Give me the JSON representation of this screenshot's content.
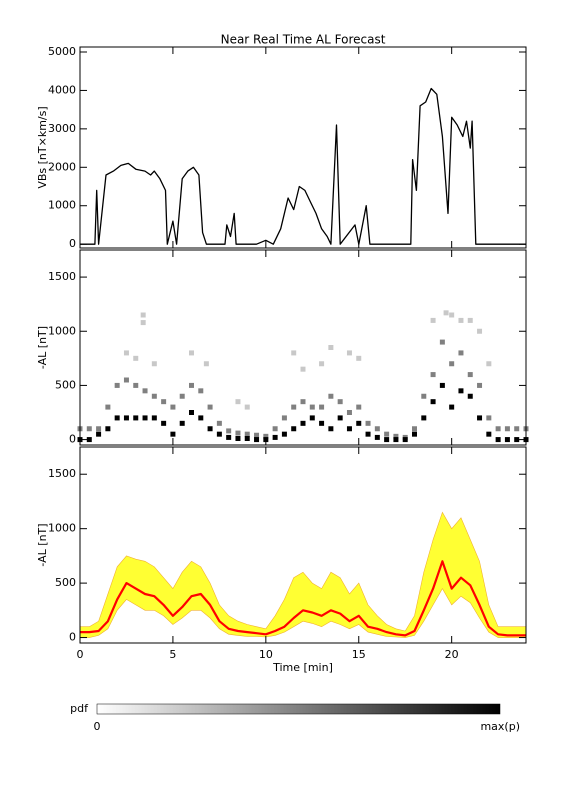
{
  "chart_data": [
    {
      "type": "line",
      "title": "Near Real Time AL Forecast",
      "ylabel": "VBs [nT×km/s]",
      "xlim": [
        0,
        24
      ],
      "xticks": [
        0,
        5,
        10,
        15,
        20
      ],
      "ylim": [
        -100,
        5130
      ],
      "yticks": [
        0,
        1000,
        2000,
        3000,
        4000,
        5000
      ],
      "color": "#000000",
      "x": [
        0,
        0.8,
        0.9,
        1.0,
        1.2,
        1.4,
        1.8,
        2.2,
        2.6,
        3,
        3.5,
        3.8,
        4.0,
        4.3,
        4.6,
        4.7,
        5.0,
        5.2,
        5.5,
        5.8,
        6.1,
        6.4,
        6.6,
        6.8,
        7.8,
        7.9,
        8.1,
        8.3,
        8.4,
        9.5,
        10,
        10.4,
        10.8,
        11.2,
        11.5,
        11.8,
        12.1,
        12.4,
        12.7,
        13.0,
        13.3,
        13.5,
        13.8,
        14.0,
        14.8,
        15,
        15.4,
        15.6,
        17.8,
        17.9,
        18.1,
        18.3,
        18.6,
        18.9,
        19.2,
        19.5,
        19.8,
        20.0,
        20.3,
        20.6,
        20.8,
        21.0,
        21.1,
        21.3,
        24
      ],
      "values": [
        0,
        0,
        1400,
        0,
        900,
        1800,
        1900,
        2050,
        2100,
        1950,
        1900,
        1800,
        1900,
        1700,
        1400,
        0,
        600,
        0,
        1700,
        1900,
        2000,
        1800,
        300,
        0,
        0,
        500,
        200,
        800,
        0,
        0,
        100,
        0,
        400,
        1200,
        900,
        1500,
        1400,
        1100,
        800,
        400,
        200,
        0,
        3100,
        0,
        500,
        0,
        1000,
        0,
        0,
        2200,
        1400,
        3600,
        3700,
        4050,
        3900,
        2800,
        800,
        3300,
        3100,
        2800,
        3200,
        2500,
        3200,
        0,
        0
      ]
    },
    {
      "type": "scatter",
      "ylabel": "-AL [nT]",
      "xlim": [
        0,
        24
      ],
      "xticks": [
        0,
        5,
        10,
        15,
        20
      ],
      "ylim": [
        -50,
        1750
      ],
      "yticks": [
        0,
        500,
        1000,
        1500
      ],
      "series": [
        {
          "color": "#c8c8c8",
          "x": [
            2.5,
            3.0,
            3.4,
            3.4,
            4.0,
            6.0,
            6.8,
            8.5,
            9.0,
            11.5,
            12.0,
            13.0,
            13.5,
            14.5,
            15.0,
            19.0,
            19.7,
            20.0,
            20.5,
            21.0,
            21.5,
            22.0
          ],
          "values": [
            800,
            750,
            1150,
            1080,
            700,
            800,
            700,
            350,
            300,
            800,
            650,
            700,
            850,
            800,
            750,
            1100,
            1170,
            1150,
            1100,
            1100,
            1000,
            700
          ]
        },
        {
          "color": "#808080",
          "x": [
            0,
            0.5,
            1,
            1.5,
            2,
            2.5,
            3,
            3.5,
            4,
            4.5,
            5,
            5.5,
            6,
            6.5,
            7,
            7.5,
            8,
            8.5,
            9,
            9.5,
            10,
            10.5,
            11,
            11.5,
            12,
            12.5,
            13,
            13.5,
            14,
            14.5,
            15,
            15.5,
            16,
            16.5,
            17,
            17.5,
            18,
            18.5,
            19,
            19.5,
            20,
            20.5,
            21,
            21.5,
            22,
            22.5,
            23,
            23.5,
            24
          ],
          "values": [
            100,
            100,
            100,
            300,
            500,
            550,
            500,
            450,
            400,
            350,
            300,
            400,
            500,
            450,
            300,
            150,
            80,
            60,
            50,
            40,
            30,
            100,
            200,
            300,
            350,
            300,
            300,
            400,
            350,
            250,
            300,
            150,
            100,
            50,
            30,
            20,
            100,
            400,
            600,
            900,
            700,
            800,
            600,
            500,
            200,
            100,
            100,
            100,
            100
          ]
        },
        {
          "color": "#000000",
          "x": [
            0,
            0.5,
            1,
            1.5,
            2,
            2.5,
            3,
            3.5,
            4,
            4.5,
            5,
            5.5,
            6,
            6.5,
            7,
            7.5,
            8,
            8.5,
            9,
            9.5,
            10,
            10.5,
            11,
            11.5,
            12,
            12.5,
            13,
            13.5,
            14,
            14.5,
            15,
            15.5,
            16,
            16.5,
            17,
            17.5,
            18,
            18.5,
            19,
            19.5,
            20,
            20.5,
            21,
            21.5,
            22,
            22.5,
            23,
            23.5,
            24
          ],
          "values": [
            0,
            0,
            50,
            100,
            200,
            200,
            200,
            200,
            200,
            150,
            50,
            150,
            250,
            200,
            100,
            50,
            20,
            10,
            10,
            0,
            0,
            20,
            50,
            100,
            150,
            200,
            150,
            100,
            200,
            100,
            150,
            50,
            20,
            0,
            0,
            0,
            50,
            200,
            350,
            500,
            300,
            450,
            400,
            200,
            50,
            0,
            0,
            0,
            0
          ]
        }
      ],
      "colorbar": {
        "label": "pdf",
        "min_label": "0",
        "max_label": "max(p)"
      }
    },
    {
      "type": "line",
      "ylabel": "-AL [nT]",
      "xlabel": "Time [min]",
      "xlim": [
        0,
        24
      ],
      "xticks": [
        0,
        5,
        10,
        15,
        20
      ],
      "ylim": [
        -50,
        1750
      ],
      "yticks": [
        0,
        500,
        1000,
        1500
      ],
      "x": [
        0,
        0.5,
        1,
        1.5,
        2,
        2.5,
        3,
        3.5,
        4,
        4.5,
        5,
        5.5,
        6,
        6.5,
        7,
        7.5,
        8,
        8.5,
        9,
        9.5,
        10,
        10.5,
        11,
        11.5,
        12,
        12.5,
        13,
        13.5,
        14,
        14.5,
        15,
        15.5,
        16,
        16.5,
        17,
        17.5,
        18,
        18.5,
        19,
        19.5,
        20,
        20.5,
        21,
        21.5,
        22,
        22.5,
        23,
        23.5,
        24
      ],
      "band": {
        "color": "#ffff33",
        "upper": [
          100,
          100,
          150,
          400,
          650,
          750,
          720,
          700,
          650,
          550,
          450,
          600,
          700,
          650,
          500,
          300,
          200,
          150,
          120,
          100,
          80,
          200,
          350,
          550,
          600,
          500,
          450,
          600,
          550,
          400,
          500,
          300,
          200,
          120,
          80,
          60,
          200,
          600,
          900,
          1150,
          1000,
          1100,
          900,
          700,
          300,
          100,
          100,
          100,
          100
        ],
        "lower": [
          0,
          0,
          20,
          80,
          250,
          350,
          300,
          250,
          250,
          200,
          120,
          180,
          250,
          250,
          180,
          80,
          30,
          20,
          10,
          10,
          5,
          20,
          50,
          100,
          150,
          130,
          100,
          150,
          120,
          80,
          120,
          50,
          30,
          10,
          5,
          0,
          20,
          150,
          300,
          450,
          300,
          380,
          320,
          180,
          50,
          0,
          0,
          0,
          0
        ]
      },
      "series": [
        {
          "color": "#ff0000",
          "values": [
            50,
            50,
            60,
            150,
            350,
            500,
            450,
            400,
            380,
            300,
            200,
            280,
            380,
            400,
            300,
            150,
            80,
            60,
            50,
            40,
            30,
            60,
            100,
            180,
            250,
            230,
            200,
            250,
            220,
            150,
            200,
            100,
            80,
            50,
            30,
            20,
            60,
            250,
            450,
            700,
            450,
            550,
            480,
            300,
            100,
            30,
            20,
            20,
            20
          ]
        }
      ]
    }
  ]
}
